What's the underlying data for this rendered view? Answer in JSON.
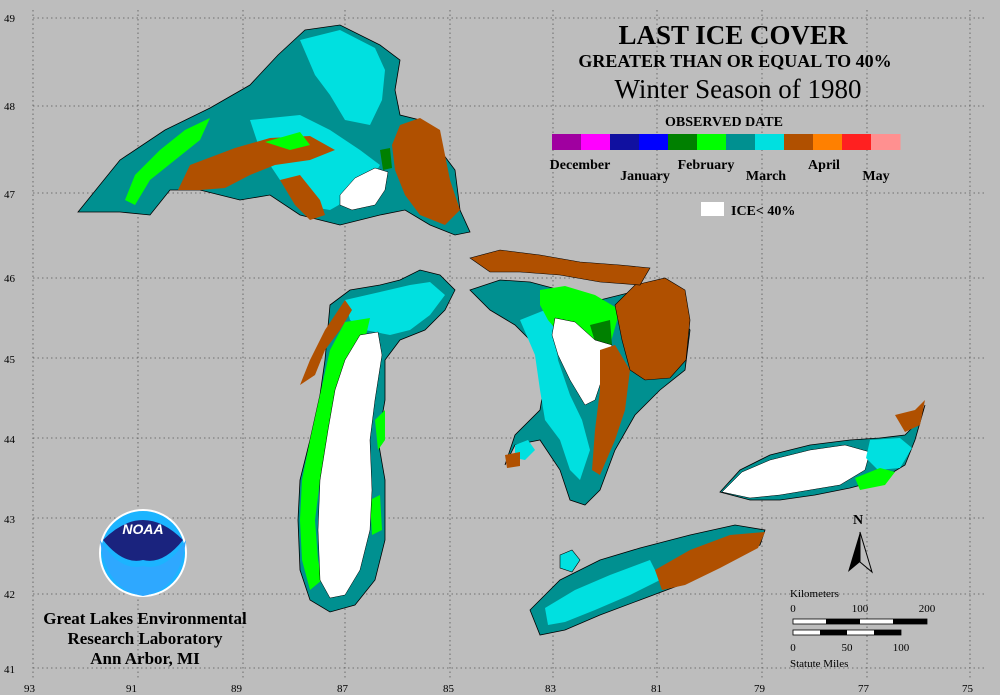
{
  "title": "LAST ICE COVER",
  "subtitle": "GREATER THAN OR EQUAL TO 40%",
  "season": "Winter Season of 1980",
  "legend": {
    "heading": "OBSERVED DATE",
    "months": [
      "December",
      "January",
      "February",
      "March",
      "April",
      "May"
    ],
    "colors": [
      "#a000a0",
      "#ff00ff",
      "#1010a0",
      "#0000ff",
      "#008000",
      "#00ff00",
      "#009090",
      "#00e0e0",
      "#b05000",
      "#ff8000",
      "#ff2020",
      "#ff9090"
    ],
    "ice_label": "ICE< 40%",
    "ice_color": "#ffffff"
  },
  "lat_labels": [
    "49",
    "48",
    "47",
    "46",
    "45",
    "44",
    "43",
    "42",
    "41"
  ],
  "lon_labels": [
    "93",
    "91",
    "89",
    "87",
    "85",
    "83",
    "81",
    "79",
    "77",
    "75"
  ],
  "north_label": "N",
  "scale": {
    "km_title": "Kilometers",
    "km_ticks": [
      "0",
      "100",
      "200"
    ],
    "mi_ticks": [
      "0",
      "50",
      "100"
    ],
    "mi_title": "Statute Miles"
  },
  "logo_text": "NOAA",
  "org": [
    "Great Lakes Environmental",
    "Research Laboratory",
    "Ann Arbor, MI"
  ],
  "colors": {
    "background": "#bdbdbd",
    "land_outline": "#000000",
    "march_teal": "#009090",
    "march_cyan": "#00e0e0",
    "april_brown": "#b05000",
    "feb_green": "#00ff00",
    "feb_darkgreen": "#008000"
  }
}
